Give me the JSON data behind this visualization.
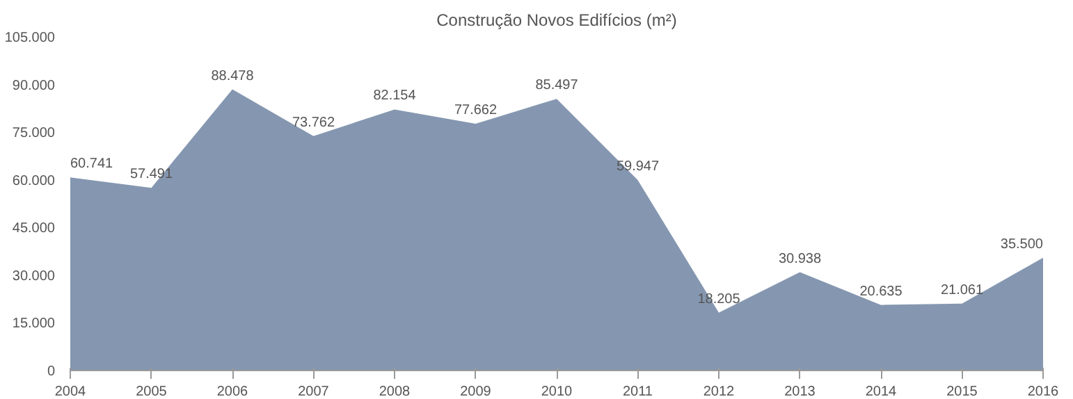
{
  "chart_data": {
    "type": "area",
    "title": "Construção Novos Edifícios (m²)",
    "x": [
      2004,
      2005,
      2006,
      2007,
      2008,
      2009,
      2010,
      2011,
      2012,
      2013,
      2014,
      2015,
      2016
    ],
    "series": [
      {
        "color": "#8597b0",
        "values": [
          60741,
          57491,
          88478,
          73762,
          82154,
          77662,
          85497,
          59947,
          18205,
          30938,
          20635,
          21061,
          35500
        ],
        "value_labels": [
          "60.741",
          "57.491",
          "88.478",
          "73.762",
          "82.154",
          "77.662",
          "85.497",
          "59.947",
          "18.205",
          "30.938",
          "20.635",
          "21.061",
          "35.500"
        ]
      }
    ],
    "xlim": [
      2004,
      2016
    ],
    "xticks": [
      2004,
      2005,
      2006,
      2007,
      2008,
      2009,
      2010,
      2011,
      2012,
      2013,
      2014,
      2015,
      2016
    ],
    "ylim": [
      0,
      105000
    ],
    "yticks": [
      {
        "value": 0,
        "label": "0"
      },
      {
        "value": 15000,
        "label": "15.000"
      },
      {
        "value": 30000,
        "label": "30.000"
      },
      {
        "value": 45000,
        "label": "45.000"
      },
      {
        "value": 60000,
        "label": "60.000"
      },
      {
        "value": 75000,
        "label": "75.000"
      },
      {
        "value": 90000,
        "label": "90.000"
      },
      {
        "value": 105000,
        "label": "105.000"
      }
    ],
    "grid": false
  }
}
